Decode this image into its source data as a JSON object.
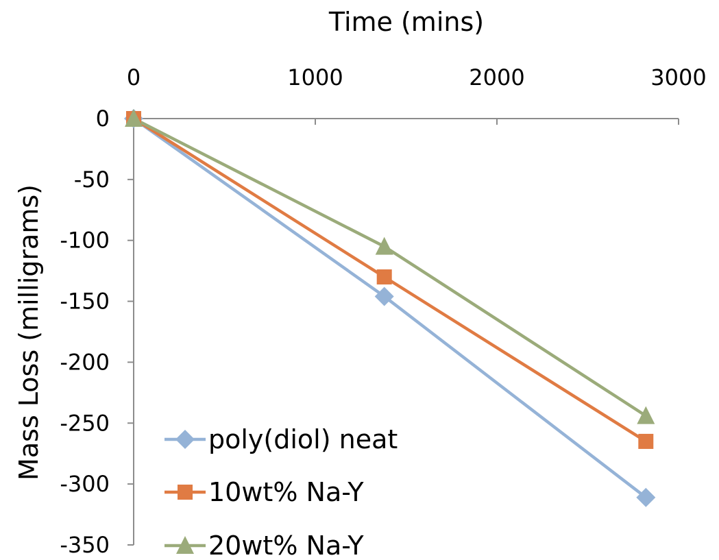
{
  "chart_data": {
    "type": "line",
    "xlabel": "Time (mins)",
    "ylabel": "Mass Loss (milligrams)",
    "xlim": [
      0,
      3000
    ],
    "ylim": [
      -350,
      0
    ],
    "x_ticks": [
      "0",
      "1000",
      "2000",
      "3000"
    ],
    "y_ticks": [
      "0",
      "-50",
      "-100",
      "-150",
      "-200",
      "-250",
      "-300",
      "-350"
    ],
    "x_axis_position": "top",
    "grid": false,
    "legend_position": "bottom-left",
    "x": [
      0,
      1380,
      2820
    ],
    "series": [
      {
        "name": "poly(diol) neat",
        "values": [
          0,
          -146,
          -311
        ],
        "color": "#95b3d7",
        "marker": "diamond"
      },
      {
        "name": "10wt% Na-Y",
        "values": [
          0,
          -130,
          -265
        ],
        "color": "#e07b43",
        "marker": "square"
      },
      {
        "name": "20wt% Na-Y",
        "values": [
          0,
          -105,
          -244
        ],
        "color": "#9bab7a",
        "marker": "triangle"
      }
    ]
  }
}
